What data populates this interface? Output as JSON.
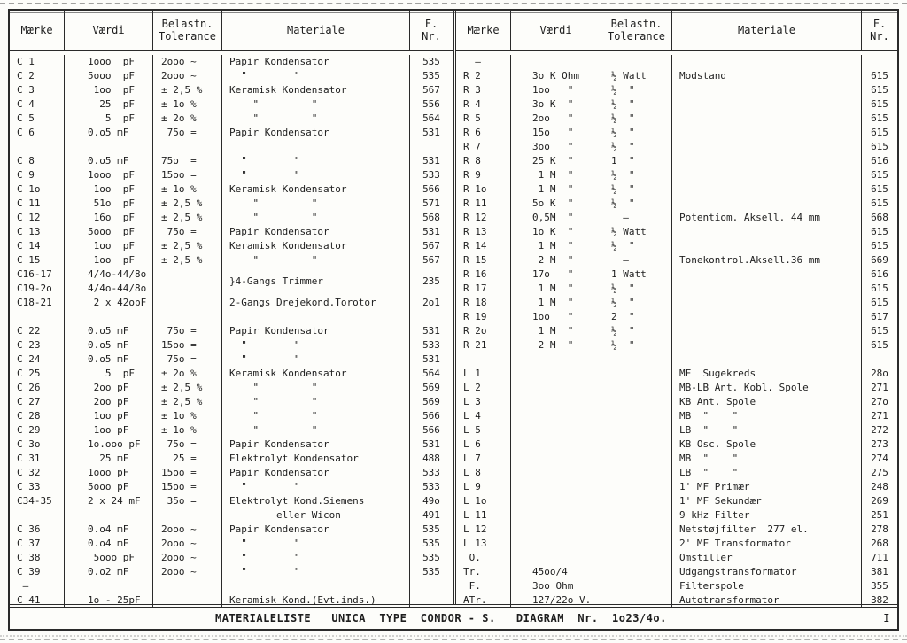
{
  "table": {
    "halves": [
      {
        "name": "left",
        "header": [
          "Mærke",
          "Værdi",
          "Belastn.\nTolerance",
          "Materiale",
          "F.\nNr."
        ],
        "rows": [
          [
            "C 1",
            "1ooo  pF",
            "2ooo ~",
            "Papir Kondensator",
            "535"
          ],
          [
            "C 2",
            "5ooo  pF",
            "2ooo ~",
            "  \"        \"",
            "535"
          ],
          [
            "C 3",
            " 1oo  pF",
            "± 2,5 %",
            "Keramisk Kondensator",
            "567"
          ],
          [
            "C 4",
            "  25  pF",
            "± 1o %",
            "    \"         \"",
            "556"
          ],
          [
            "C 5",
            "   5  pF",
            "± 2o %",
            "    \"         \"",
            "564"
          ],
          [
            "C 6",
            "0.o5 mF",
            " 75o =",
            "Papir Kondensator",
            "531"
          ],
          [
            "",
            "",
            "",
            "",
            ""
          ],
          [
            "C 8",
            "0.o5 mF",
            "75o  =",
            "  \"        \"",
            "531"
          ],
          [
            "C 9",
            "1ooo  pF",
            "15oo =",
            "  \"        \"",
            "533"
          ],
          [
            "C 1o",
            " 1oo  pF",
            "± 1o %",
            "Keramisk Kondensator",
            "566"
          ],
          [
            "C 11",
            " 51o  pF",
            "± 2,5 %",
            "    \"         \"",
            "571"
          ],
          [
            "C 12",
            " 16o  pF",
            "± 2,5 %",
            "    \"         \"",
            "568"
          ],
          [
            "C 13",
            "5ooo  pF",
            " 75o =",
            "Papir Kondensator",
            "531"
          ],
          [
            "C 14",
            " 1oo  pF",
            "± 2,5 %",
            "Keramisk Kondensator",
            "567"
          ],
          [
            "C 15",
            " 1oo  pF",
            "± 2,5 %",
            "    \"         \"",
            "567"
          ],
          [
            "C16-17",
            "4/4o-44/8o",
            "",
            "}4-Gangs Trimmer",
            "235"
          ],
          [
            "C19-2o",
            "4/4o-44/8o",
            "",
            "",
            ""
          ],
          [
            "C18-21",
            " 2 x 42opF",
            "",
            "2-Gangs Drejekond.Torotor",
            "2o1"
          ],
          [
            "",
            "",
            "",
            "",
            ""
          ],
          [
            "C 22",
            "0.o5 mF",
            " 75o =",
            "Papir Kondensator",
            "531"
          ],
          [
            "C 23",
            "0.o5 mF",
            "15oo =",
            "  \"        \"",
            "533"
          ],
          [
            "C 24",
            "0.o5 mF",
            " 75o =",
            "  \"        \"",
            "531"
          ],
          [
            "C 25",
            "   5  pF",
            "± 2o %",
            "Keramisk Kondensator",
            "564"
          ],
          [
            "C 26",
            " 2oo pF",
            "± 2,5 %",
            "    \"         \"",
            "569"
          ],
          [
            "C 27",
            " 2oo pF",
            "± 2,5 %",
            "    \"         \"",
            "569"
          ],
          [
            "C 28",
            " 1oo pF",
            "± 1o %",
            "    \"         \"",
            "566"
          ],
          [
            "C 29",
            " 1oo pF",
            "± 1o %",
            "    \"         \"",
            "566"
          ],
          [
            "C 3o",
            "1o.ooo pF",
            " 75o =",
            "Papir Kondensator",
            "531"
          ],
          [
            "C 31",
            "  25 mF",
            "  25 =",
            "Elektrolyt Kondensator",
            "488"
          ],
          [
            "C 32",
            "1ooo pF",
            "15oo =",
            "Papir Kondensator",
            "533"
          ],
          [
            "C 33",
            "5ooo pF",
            "15oo =",
            "  \"        \"",
            "533"
          ],
          [
            "C34-35",
            "2 x 24 mF",
            " 35o =",
            "Elektrolyt Kond.Siemens",
            "49o"
          ],
          [
            "",
            "",
            "",
            "        eller Wicon",
            "491"
          ],
          [
            "C 36",
            "0.o4 mF",
            "2ooo ~",
            "Papir Kondensator",
            "535"
          ],
          [
            "C 37",
            "0.o4 mF",
            "2ooo ~",
            "  \"        \"",
            "535"
          ],
          [
            "C 38",
            " 5ooo pF",
            "2ooo ~",
            "  \"        \"",
            "535"
          ],
          [
            "C 39",
            "0.o2 mF",
            "2ooo ~",
            "  \"        \"",
            "535"
          ],
          [
            " —",
            "",
            "",
            "",
            ""
          ],
          [
            "C 41",
            "1o - 25pF",
            "",
            "Keramisk Kond.(Evt.inds.)",
            ""
          ]
        ]
      },
      {
        "name": "right",
        "header": [
          "Mærke",
          "Værdi",
          "Belastn.\nTolerance",
          "Materiale",
          "F.\nNr."
        ],
        "rows": [
          [
            "  –",
            "",
            "",
            "",
            ""
          ],
          [
            "R 2",
            "3o K Ohm",
            "½ Watt",
            "Modstand",
            "615"
          ],
          [
            "R 3",
            "1oo   \"",
            "½  \"",
            "",
            "615"
          ],
          [
            "R 4",
            "3o K  \"",
            "½  \"",
            "",
            "615"
          ],
          [
            "R 5",
            "2oo   \"",
            "½  \"",
            "",
            "615"
          ],
          [
            "R 6",
            "15o   \"",
            "½  \"",
            "",
            "615"
          ],
          [
            "R 7",
            "3oo   \"",
            "½  \"",
            "",
            "615"
          ],
          [
            "R 8",
            "25 K  \"",
            "1  \"",
            "",
            "616"
          ],
          [
            "R 9",
            " 1 M  \"",
            "½  \"",
            "",
            "615"
          ],
          [
            "R 1o",
            " 1 M  \"",
            "½  \"",
            "",
            "615"
          ],
          [
            "R 11",
            "5o K  \"",
            "½  \"",
            "",
            "615"
          ],
          [
            "R 12",
            "0,5M  \"",
            "  —",
            "Potentiom. Aksell. 44 mm",
            "668"
          ],
          [
            "R 13",
            "1o K  \"",
            "½ Watt",
            "",
            "615"
          ],
          [
            "R 14",
            " 1 M  \"",
            "½  \"",
            "",
            "615"
          ],
          [
            "R 15",
            " 2 M  \"",
            "  –",
            "Tonekontrol.Aksell.36 mm",
            "669"
          ],
          [
            "R 16",
            "17o   \"",
            "1 Watt",
            "",
            "616"
          ],
          [
            "R 17",
            " 1 M  \"",
            "½  \"",
            "",
            "615"
          ],
          [
            "R 18",
            " 1 M  \"",
            "½  \"",
            "",
            "615"
          ],
          [
            "R 19",
            "1oo   \"",
            "2  \"",
            "",
            "617"
          ],
          [
            "R 2o",
            " 1 M  \"",
            "½  \"",
            "",
            "615"
          ],
          [
            "R 21",
            " 2 M  \"",
            "½  \"",
            "",
            "615"
          ],
          [
            "",
            "",
            "",
            "",
            ""
          ],
          [
            "L 1",
            "",
            "",
            "MF  Sugekreds",
            "28o"
          ],
          [
            "L 2",
            "",
            "",
            "MB-LB Ant. Kobl. Spole",
            "271"
          ],
          [
            "L 3",
            "",
            "",
            "KB Ant. Spole",
            "27o"
          ],
          [
            "L 4",
            "",
            "",
            "MB  \"    \"",
            "271"
          ],
          [
            "L 5",
            "",
            "",
            "LB  \"    \"",
            "272"
          ],
          [
            "L 6",
            "",
            "",
            "KB Osc. Spole",
            "273"
          ],
          [
            "L 7",
            "",
            "",
            "MB  \"    \"",
            "274"
          ],
          [
            "L 8",
            "",
            "",
            "LB  \"    \"",
            "275"
          ],
          [
            "L 9",
            "",
            "",
            "1' MF Primær",
            "248"
          ],
          [
            "L 1o",
            "",
            "",
            "1' MF Sekundær",
            "269"
          ],
          [
            "L 11",
            "",
            "",
            "9 kHz Filter",
            "251"
          ],
          [
            "L 12",
            "",
            "",
            "Netstøjfilter  277 el.",
            "278"
          ],
          [
            "L 13",
            "",
            "",
            "2' MF Transformator",
            "268"
          ],
          [
            " O.",
            "",
            "",
            "Omstiller",
            "711"
          ],
          [
            "Tr.",
            "45oo/4",
            "",
            "Udgangstransformator",
            "381"
          ],
          [
            " F.",
            "3oo Ohm",
            "",
            "Filterspole",
            "355"
          ],
          [
            "ATr.",
            "127/22o V.",
            "",
            "Autotransformator",
            "382"
          ]
        ]
      }
    ]
  },
  "footer": {
    "text": "MATERIALELISTE   UNICA  TYPE  CONDOR - S.   DIAGRAM  Nr.  1o23/4o.",
    "page": "I"
  }
}
